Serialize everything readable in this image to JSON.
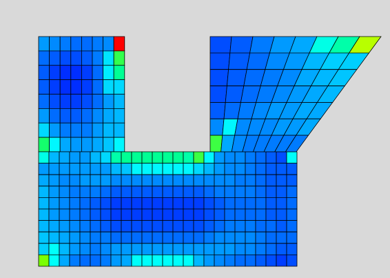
{
  "viewport": {
    "background": "#d9d9d9"
  },
  "mesh": {
    "edge_color": "#000000",
    "colormap": [
      "#0000ff",
      "#0060ff",
      "#00c0ff",
      "#00ffff",
      "#00ff80",
      "#80ff00",
      "#ffff00",
      "#ff8000",
      "#ff0000"
    ],
    "left_column_values": [
      [
        0.2,
        0.18,
        0.16,
        0.14,
        0.14,
        0.16,
        0.18,
        1.0
      ],
      [
        0.14,
        0.12,
        0.1,
        0.1,
        0.12,
        0.16,
        0.32,
        0.55
      ],
      [
        0.12,
        0.08,
        0.06,
        0.06,
        0.08,
        0.14,
        0.34,
        0.48
      ],
      [
        0.12,
        0.08,
        0.06,
        0.06,
        0.08,
        0.14,
        0.3,
        0.3
      ],
      [
        0.14,
        0.1,
        0.08,
        0.08,
        0.1,
        0.14,
        0.2,
        0.24
      ],
      [
        0.2,
        0.14,
        0.12,
        0.12,
        0.14,
        0.18,
        0.22,
        0.24
      ],
      [
        0.3,
        0.2,
        0.16,
        0.16,
        0.16,
        0.2,
        0.24,
        0.24
      ],
      [
        0.52,
        0.36,
        0.22,
        0.2,
        0.2,
        0.22,
        0.26,
        0.36
      ]
    ],
    "lower_block_values": [
      [
        0.4,
        0.24,
        0.22,
        0.2,
        0.2,
        0.24,
        0.3,
        0.46,
        0.48,
        0.48,
        0.48,
        0.48,
        0.48,
        0.48,
        0.46,
        0.56,
        0.36,
        0.2,
        0.18,
        0.18,
        0.16,
        0.14,
        0.12,
        0.1,
        0.38
      ],
      [
        0.2,
        0.2,
        0.2,
        0.2,
        0.2,
        0.2,
        0.2,
        0.24,
        0.26,
        0.36,
        0.36,
        0.36,
        0.36,
        0.36,
        0.36,
        0.3,
        0.24,
        0.2,
        0.18,
        0.18,
        0.16,
        0.14,
        0.12,
        0.12,
        0.12
      ],
      [
        0.22,
        0.2,
        0.18,
        0.18,
        0.2,
        0.2,
        0.2,
        0.18,
        0.18,
        0.18,
        0.18,
        0.18,
        0.18,
        0.18,
        0.18,
        0.18,
        0.18,
        0.18,
        0.18,
        0.16,
        0.16,
        0.14,
        0.12,
        0.12,
        0.12
      ],
      [
        0.24,
        0.2,
        0.18,
        0.16,
        0.16,
        0.16,
        0.14,
        0.12,
        0.12,
        0.12,
        0.12,
        0.12,
        0.12,
        0.12,
        0.12,
        0.12,
        0.14,
        0.16,
        0.16,
        0.16,
        0.16,
        0.14,
        0.12,
        0.12,
        0.14
      ],
      [
        0.24,
        0.2,
        0.18,
        0.16,
        0.14,
        0.12,
        0.1,
        0.08,
        0.08,
        0.08,
        0.08,
        0.08,
        0.08,
        0.08,
        0.08,
        0.08,
        0.1,
        0.12,
        0.14,
        0.14,
        0.14,
        0.14,
        0.12,
        0.12,
        0.14
      ],
      [
        0.24,
        0.2,
        0.18,
        0.16,
        0.14,
        0.12,
        0.1,
        0.08,
        0.08,
        0.08,
        0.08,
        0.08,
        0.08,
        0.08,
        0.08,
        0.08,
        0.1,
        0.12,
        0.14,
        0.14,
        0.14,
        0.14,
        0.12,
        0.12,
        0.14
      ],
      [
        0.24,
        0.22,
        0.2,
        0.18,
        0.16,
        0.14,
        0.12,
        0.1,
        0.1,
        0.1,
        0.1,
        0.1,
        0.1,
        0.1,
        0.1,
        0.1,
        0.12,
        0.14,
        0.16,
        0.16,
        0.16,
        0.14,
        0.14,
        0.12,
        0.14
      ],
      [
        0.26,
        0.24,
        0.22,
        0.2,
        0.18,
        0.16,
        0.16,
        0.14,
        0.14,
        0.14,
        0.14,
        0.14,
        0.14,
        0.14,
        0.14,
        0.14,
        0.16,
        0.18,
        0.18,
        0.18,
        0.18,
        0.16,
        0.14,
        0.14,
        0.14
      ],
      [
        0.28,
        0.38,
        0.24,
        0.2,
        0.18,
        0.16,
        0.18,
        0.2,
        0.2,
        0.2,
        0.2,
        0.2,
        0.2,
        0.2,
        0.2,
        0.2,
        0.2,
        0.2,
        0.2,
        0.18,
        0.18,
        0.16,
        0.14,
        0.12,
        0.12
      ],
      [
        0.62,
        0.38,
        0.22,
        0.16,
        0.14,
        0.14,
        0.16,
        0.2,
        0.22,
        0.38,
        0.38,
        0.38,
        0.38,
        0.38,
        0.38,
        0.24,
        0.2,
        0.18,
        0.16,
        0.14,
        0.14,
        0.12,
        0.1,
        0.08,
        0.1
      ]
    ],
    "right_wedge_values": [
      [
        0.1,
        0.12,
        0.16,
        0.2,
        0.22,
        0.4,
        0.46,
        0.68
      ],
      [
        0.1,
        0.12,
        0.14,
        0.18,
        0.2,
        0.24,
        0.28,
        0.28
      ],
      [
        0.1,
        0.12,
        0.14,
        0.16,
        0.18,
        0.22,
        0.24,
        0.26
      ],
      [
        0.1,
        0.12,
        0.14,
        0.16,
        0.18,
        0.2,
        0.22,
        0.24
      ],
      [
        0.12,
        0.14,
        0.16,
        0.18,
        0.2,
        0.2,
        0.22,
        0.22
      ],
      [
        0.18,
        0.36,
        0.18,
        0.18,
        0.18,
        0.2,
        0.2,
        0.22
      ],
      [
        0.56,
        0.22,
        0.18,
        0.16,
        0.16,
        0.16,
        0.16,
        0.16
      ]
    ]
  }
}
